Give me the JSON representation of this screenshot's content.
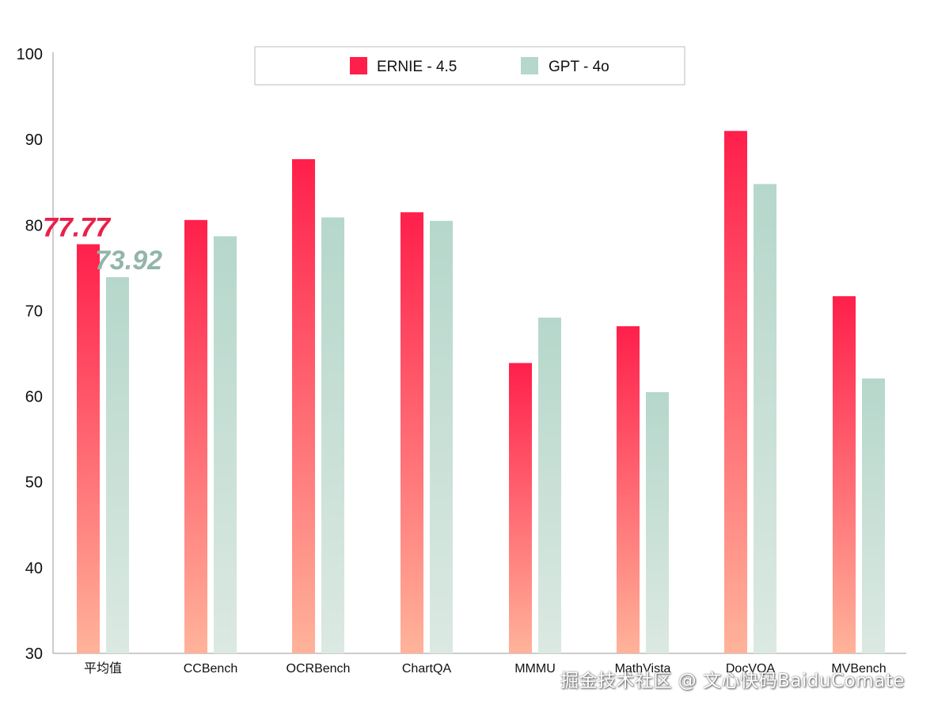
{
  "chart_data": {
    "type": "bar",
    "categories": [
      "平均值",
      "CCBench",
      "OCRBench",
      "ChartQA",
      "MMMU",
      "MathVista",
      "DocVQA",
      "MVBench"
    ],
    "series": [
      {
        "name": "ERNIE - 4.5",
        "color": "#ff1f4b",
        "color_light": "#ffb39a",
        "values": [
          77.77,
          80.6,
          87.7,
          81.5,
          63.9,
          68.2,
          91.0,
          71.7
        ]
      },
      {
        "name": "GPT - 4o",
        "color": "#b6d7cb",
        "color_light": "#dbe9e2",
        "values": [
          73.92,
          78.7,
          80.9,
          80.5,
          69.2,
          60.5,
          84.8,
          62.1
        ]
      }
    ],
    "ylim": [
      30,
      100
    ],
    "yticks": [
      "30",
      "40",
      "50",
      "60",
      "70",
      "80",
      "90",
      "100"
    ],
    "callouts": [
      {
        "text": "77.77",
        "series": 0,
        "category": 0,
        "color": "#e8204a"
      },
      {
        "text": "73.92",
        "series": 1,
        "category": 0,
        "color": "#93b5a9"
      }
    ],
    "legend_position": "top-center",
    "grid": false
  },
  "watermark": {
    "text": "掘金技术社区 @ 文心快码BaiduComate"
  }
}
